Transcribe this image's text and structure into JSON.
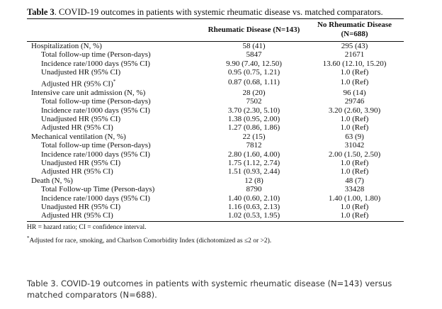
{
  "table": {
    "title_bold": "Table 3",
    "title_rest": ". COVID-19 outcomes in patients with systemic rheumatic disease vs. matched comparators.",
    "headers": [
      "",
      "Rheumatic Disease (N=143)",
      "No Rheumatic Disease (N=688)"
    ],
    "rows": [
      {
        "kind": "section",
        "label": "Hospitalization (N, %)",
        "rd": "58 (41)",
        "nrd": "295 (43)"
      },
      {
        "kind": "sub",
        "label": "Total follow-up time (Person-days)",
        "rd": "5847",
        "nrd": "21671"
      },
      {
        "kind": "sub",
        "label": "Incidence rate/1000 days (95% CI)",
        "rd": "9.90 (7.40, 12.50)",
        "nrd": "13.60 (12.10, 15.20)"
      },
      {
        "kind": "sub",
        "label": "Unadjusted HR (95% CI)",
        "rd": "0.95 (0.75, 1.21)",
        "nrd": "1.0 (Ref)"
      },
      {
        "kind": "sub",
        "label": "Adjusted HR (95% CI)",
        "sup": "*",
        "rd": "0.87 (0.68, 1.11)",
        "nrd": "1.0 (Ref)"
      },
      {
        "kind": "section",
        "label": "Intensive care unit admission (N, %)",
        "rd": "28 (20)",
        "nrd": "96 (14)"
      },
      {
        "kind": "sub",
        "label": "Total follow-up time (Person-days)",
        "rd": "7502",
        "nrd": "29746"
      },
      {
        "kind": "sub",
        "label": "Incidence rate/1000 days (95% CI)",
        "rd": "3.70 (2.30, 5.10)",
        "nrd": "3.20 (2.60, 3.90)"
      },
      {
        "kind": "sub",
        "label": "Unadjusted HR (95% CI)",
        "rd": "1.38 (0.95, 2.00)",
        "nrd": "1.0 (Ref)"
      },
      {
        "kind": "sub",
        "label": "Adjusted HR (95% CI)",
        "rd": "1.27 (0.86, 1.86)",
        "nrd": "1.0 (Ref)"
      },
      {
        "kind": "section",
        "label": "Mechanical ventilation (N, %)",
        "rd": "22 (15)",
        "nrd": "63 (9)"
      },
      {
        "kind": "sub",
        "label": "Total follow-up time (Person-days)",
        "rd": "7812",
        "nrd": "31042"
      },
      {
        "kind": "sub",
        "label": "Incidence rate/1000 days (95% CI)",
        "rd": "2.80 (1.60, 4.00)",
        "nrd": "2.00 (1.50, 2.50)"
      },
      {
        "kind": "sub",
        "label": "Unadjusted HR (95% CI)",
        "rd": "1.75 (1.12, 2.74)",
        "nrd": "1.0 (Ref)"
      },
      {
        "kind": "sub",
        "label": "Adjusted HR (95% CI)",
        "rd": "1.51 (0.93, 2.44)",
        "nrd": "1.0 (Ref)"
      },
      {
        "kind": "section",
        "label": "Death (N, %)",
        "rd": "12 (8)",
        "nrd": "48 (7)"
      },
      {
        "kind": "sub",
        "label": "Total Follow-up Time (Person-days)",
        "rd": "8790",
        "nrd": "33428"
      },
      {
        "kind": "sub",
        "label": "Incidence rate/1000 days (95% CI)",
        "rd": "1.40 (0.60, 2.10)",
        "nrd": "1.40 (1.00, 1.80)"
      },
      {
        "kind": "sub",
        "label": "Unadjusted HR (95% CI)",
        "rd": "1.16 (0.63, 2.13)",
        "nrd": "1.0 (Ref)"
      },
      {
        "kind": "sub",
        "label": "Adjusted HR (95% CI)",
        "rd": "1.02 (0.53, 1.95)",
        "nrd": "1.0 (Ref)"
      }
    ],
    "footnote_abbrev": "HR = hazard ratio; CI = confidence interval.",
    "footnote_star_mark": "*",
    "footnote_star_text": "Adjusted for race, smoking, and Charlson Comorbidity Index (dichotomized as ≤2 or >2)."
  },
  "caption": "Table 3. COVID-19 outcomes in patients with systemic rheumatic disease (N=143) versus matched comparators (N=688)."
}
